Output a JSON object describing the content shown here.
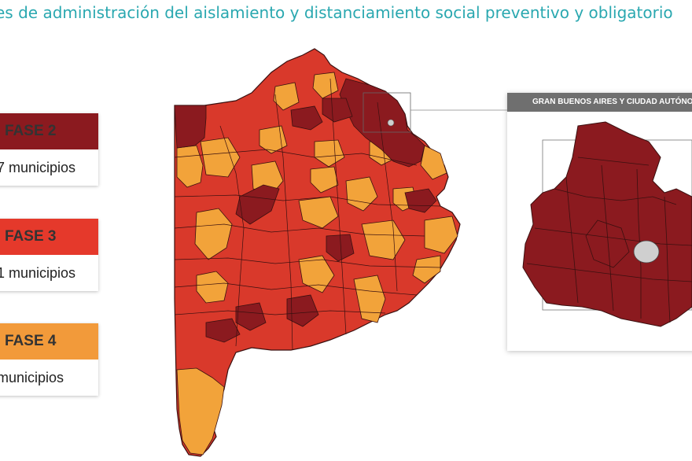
{
  "header": {
    "title": "es de administración del aislamiento y distanciamiento social preventivo y obligatorio"
  },
  "legend": [
    {
      "phase": "FASE 2",
      "count_text": "7 municipios",
      "color": "#8b1a1f"
    },
    {
      "phase": "FASE 3",
      "count_text": "1 municipios",
      "color": "#e5392b"
    },
    {
      "phase": "FASE 4",
      "count_text": "municipios",
      "color": "#f29a3a"
    }
  ],
  "inset": {
    "title": "GRAN BUENOS AIRES Y CIUDAD AUTÓNOMA"
  },
  "colors": {
    "fase2": "#8b1a1f",
    "fase3": "#d9392b",
    "fase4": "#f2a33a",
    "border": "#3a1010",
    "title": "#2aa8b0",
    "caba": "#cfcfcf"
  }
}
